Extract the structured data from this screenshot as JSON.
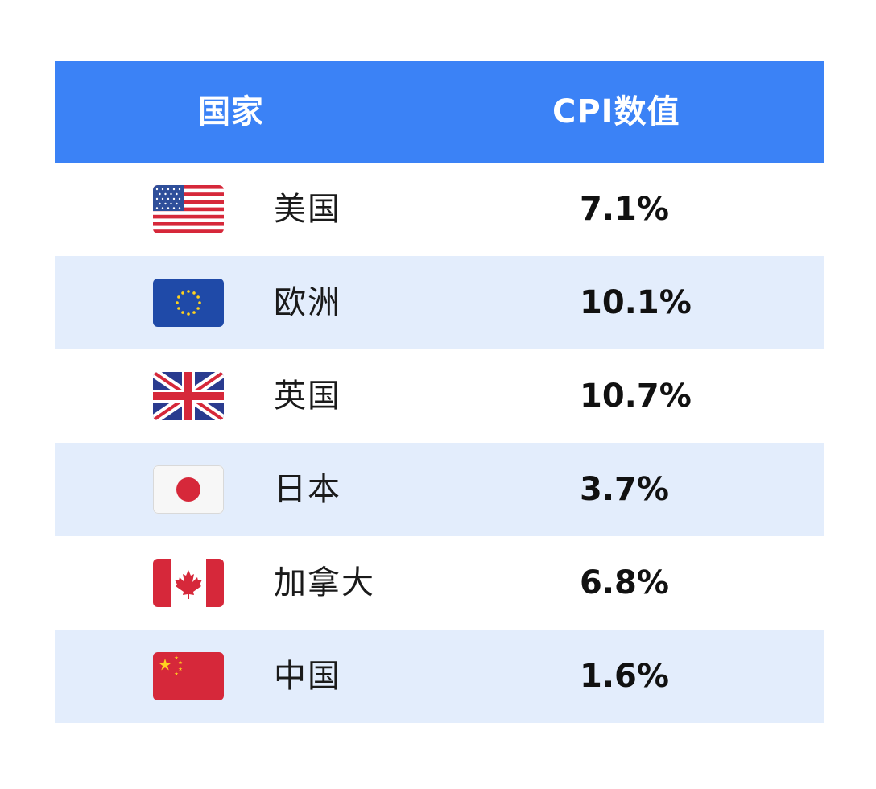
{
  "table": {
    "header": {
      "country": "国家",
      "cpi": "CPI数值"
    },
    "rows": [
      {
        "flag_icon": "us-flag-icon",
        "country": "美国",
        "cpi": "7.1%"
      },
      {
        "flag_icon": "eu-flag-icon",
        "country": "欧洲",
        "cpi": "10.1%"
      },
      {
        "flag_icon": "uk-flag-icon",
        "country": "英国",
        "cpi": "10.7%"
      },
      {
        "flag_icon": "japan-flag-icon",
        "country": "日本",
        "cpi": "3.7%"
      },
      {
        "flag_icon": "canada-flag-icon",
        "country": "加拿大",
        "cpi": "6.8%"
      },
      {
        "flag_icon": "china-flag-icon",
        "country": "中国",
        "cpi": "1.6%"
      }
    ]
  },
  "colors": {
    "header_bg": "#3b82f6",
    "alt_row_bg": "#e3edfc"
  }
}
